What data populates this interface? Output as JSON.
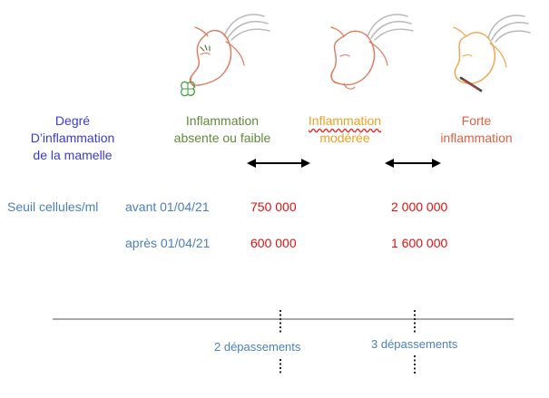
{
  "header": {
    "degree_label": [
      "Degré",
      "D’inflammation",
      "de la mamelle"
    ],
    "col_absent": [
      "Inflammation",
      "absente ou faible"
    ],
    "col_moderate": [
      "Inflammation",
      "modérée"
    ],
    "col_strong": [
      "Forte",
      "inflammation"
    ]
  },
  "thresholds": {
    "row_label": "Seuil cellules/ml",
    "before_label": "avant 01/04/21",
    "after_label": "après 01/04/21",
    "before_low": "750 000",
    "before_high": "2 000 000",
    "after_low": "600 000",
    "after_high": "1 600 000"
  },
  "timeline": {
    "label_left": "2 dépassements",
    "label_right": "3 dépassements"
  },
  "colors": {
    "blue_label": "#3a3ad8",
    "green": "#5f8a3a",
    "orange": "#f0a020",
    "red_orange": "#e26040",
    "value_red": "#e01010",
    "date_blue": "#4a7fc0"
  },
  "icons": [
    "goat-healthy-icon",
    "goat-moderate-icon",
    "goat-strong-icon"
  ]
}
